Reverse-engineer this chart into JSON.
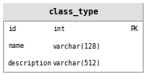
{
  "title": "class_type",
  "fields": [
    {
      "name": "id",
      "type": "int",
      "key": "PK"
    },
    {
      "name": "name",
      "type": "varchar(128)",
      "key": ""
    },
    {
      "name": "description",
      "type": "varchar(512)",
      "key": ""
    }
  ],
  "header_bg": "#e0e0e0",
  "body_bg": "#ffffff",
  "border_color": "#999999",
  "title_fontsize": 7.5,
  "field_fontsize": 6.0,
  "title_fontstyle": "bold",
  "fig_width": 1.82,
  "fig_height": 0.94,
  "dpi": 100
}
